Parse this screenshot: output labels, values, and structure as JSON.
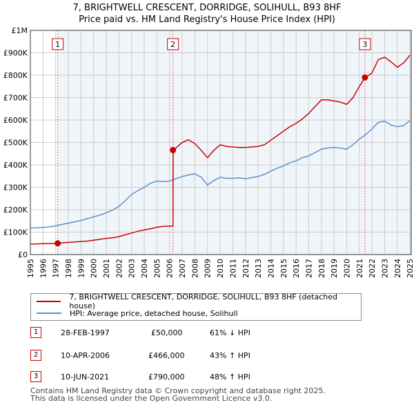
{
  "title_line1": "7, BRIGHTWELL CRESCENT, DORRIDGE, SOLIHULL, B93 8HF",
  "title_line2": "Price paid vs. HM Land Registry's House Price Index (HPI)",
  "colors": {
    "property": "#cc0000",
    "hpi": "#5b8fcc",
    "shade": "#dde8f5",
    "grid": "#cccccc"
  },
  "chart_data": {
    "type": "line",
    "xlim": [
      1995,
      2025.1
    ],
    "ylim": [
      0,
      1000000
    ],
    "x_ticks": [
      1995,
      1996,
      1997,
      1998,
      1999,
      2000,
      2001,
      2002,
      2003,
      2004,
      2005,
      2006,
      2007,
      2008,
      2009,
      2010,
      2011,
      2012,
      2013,
      2014,
      2015,
      2016,
      2017,
      2018,
      2019,
      2020,
      2021,
      2022,
      2023,
      2024,
      2025
    ],
    "y_ticks": [
      {
        "value": 0,
        "label": "£0"
      },
      {
        "value": 100000,
        "label": "£100K"
      },
      {
        "value": 200000,
        "label": "£200K"
      },
      {
        "value": 300000,
        "label": "£300K"
      },
      {
        "value": 400000,
        "label": "£400K"
      },
      {
        "value": 500000,
        "label": "£500K"
      },
      {
        "value": 600000,
        "label": "£600K"
      },
      {
        "value": 700000,
        "label": "£700K"
      },
      {
        "value": 800000,
        "label": "£800K"
      },
      {
        "value": 900000,
        "label": "£900K"
      },
      {
        "value": 1000000,
        "label": "£1M"
      }
    ],
    "shaded_from": 2025,
    "series": [
      {
        "name": "HPI: Average price, detached house, Solihull",
        "x": [
          1995,
          1995.5,
          1996,
          1996.5,
          1997,
          1997.5,
          1998,
          1998.5,
          1999,
          1999.5,
          2000,
          2000.5,
          2001,
          2001.5,
          2002,
          2002.5,
          2003,
          2003.5,
          2004,
          2004.5,
          2005,
          2005.5,
          2006,
          2006.5,
          2007,
          2007.5,
          2008,
          2008.5,
          2009,
          2009.5,
          2010,
          2010.5,
          2011,
          2011.5,
          2012,
          2012.5,
          2013,
          2013.5,
          2014,
          2014.5,
          2015,
          2015.5,
          2016,
          2016.5,
          2017,
          2017.5,
          2018,
          2018.5,
          2019,
          2019.5,
          2020,
          2020.5,
          2021,
          2021.5,
          2022,
          2022.5,
          2023,
          2023.5,
          2024,
          2024.5,
          2025
        ],
        "values": [
          118000,
          119000,
          121000,
          124000,
          128000,
          134000,
          140000,
          146000,
          152000,
          160000,
          168000,
          176000,
          186000,
          198000,
          215000,
          240000,
          268000,
          285000,
          300000,
          318000,
          328000,
          325000,
          328000,
          338000,
          348000,
          355000,
          360000,
          345000,
          310000,
          330000,
          345000,
          340000,
          340000,
          342000,
          338000,
          343000,
          348000,
          358000,
          372000,
          385000,
          395000,
          410000,
          418000,
          432000,
          440000,
          455000,
          470000,
          475000,
          478000,
          475000,
          470000,
          490000,
          515000,
          535000,
          560000,
          590000,
          595000,
          578000,
          570000,
          575000,
          598000
        ]
      },
      {
        "name": "7, BRIGHTWELL CRESCENT, DORRIDGE, SOLIHULL, B93 8HF (detached house)",
        "x": [
          1995,
          1995.5,
          1996,
          1996.5,
          1997.16,
          1997.5,
          1998,
          1998.5,
          1999,
          1999.5,
          2000,
          2000.5,
          2001,
          2001.5,
          2002,
          2002.5,
          2003,
          2003.5,
          2004,
          2004.5,
          2005,
          2005.5,
          2006,
          2006.27,
          2006.28,
          2006.5,
          2007,
          2007.5,
          2008,
          2008.5,
          2009,
          2009.5,
          2010,
          2010.5,
          2011,
          2011.5,
          2012,
          2012.5,
          2013,
          2013.5,
          2014,
          2014.5,
          2015,
          2015.5,
          2016,
          2016.5,
          2017,
          2017.5,
          2018,
          2018.5,
          2019,
          2019.5,
          2020,
          2020.5,
          2021,
          2021.44,
          2021.5,
          2022,
          2022.5,
          2023,
          2023.5,
          2024,
          2024.5,
          2025
        ],
        "values": [
          47000,
          47500,
          48500,
          49000,
          50000,
          52000,
          54000,
          56000,
          58000,
          60000,
          64000,
          68000,
          72000,
          75000,
          80000,
          88000,
          96000,
          104000,
          110000,
          115000,
          122000,
          126000,
          127000,
          127500,
          466000,
          475000,
          500000,
          512000,
          495000,
          465000,
          432000,
          465000,
          490000,
          482000,
          480000,
          478000,
          478000,
          480000,
          482000,
          490000,
          510000,
          530000,
          550000,
          570000,
          585000,
          605000,
          630000,
          660000,
          690000,
          690000,
          685000,
          680000,
          670000,
          700000,
          750000,
          790000,
          790000,
          810000,
          870000,
          880000,
          860000,
          835000,
          855000,
          890000
        ]
      }
    ],
    "sales": [
      {
        "label": "1",
        "x": 1997.16,
        "value": 50000
      },
      {
        "label": "2",
        "x": 2006.27,
        "value": 466000
      },
      {
        "label": "3",
        "x": 2021.44,
        "value": 790000
      }
    ]
  },
  "legend": {
    "property_label": "7, BRIGHTWELL CRESCENT, DORRIDGE, SOLIHULL, B93 8HF (detached house)",
    "hpi_label": "HPI: Average price, detached house, Solihull"
  },
  "sales_table": [
    {
      "num": "1",
      "date": "28-FEB-1997",
      "price": "£50,000",
      "hpi": "61% ↓ HPI"
    },
    {
      "num": "2",
      "date": "10-APR-2006",
      "price": "£466,000",
      "hpi": "43% ↑ HPI"
    },
    {
      "num": "3",
      "date": "10-JUN-2021",
      "price": "£790,000",
      "hpi": "48% ↑ HPI"
    }
  ],
  "footer": {
    "line1": "Contains HM Land Registry data © Crown copyright and database right 2025.",
    "line2": "This data is licensed under the Open Government Licence v3.0."
  }
}
